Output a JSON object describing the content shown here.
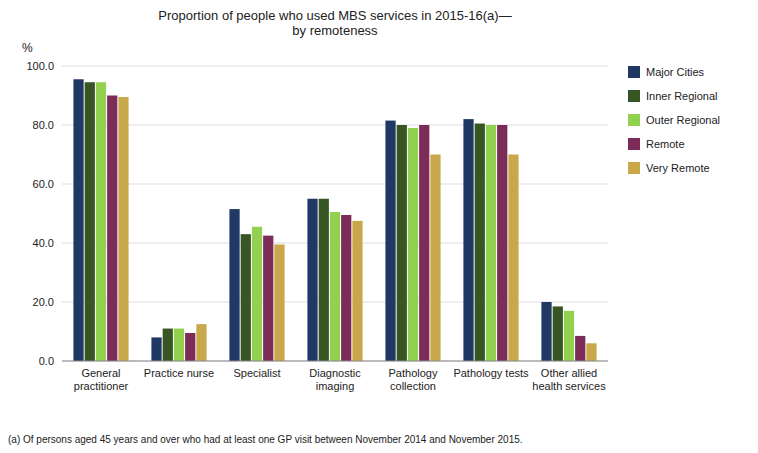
{
  "chart_data": {
    "type": "bar",
    "title": "Proportion of people who used MBS services in 2015-16(a)—\nby remoteness",
    "y_label": "%",
    "footnote": "(a) Of persons aged 45 years and over who had at least one GP visit between November 2014 and November 2015.",
    "categories": [
      "General\npractitioner",
      "Practice nurse",
      "Specialist",
      "Diagnostic\nimaging",
      "Pathology\ncollection",
      "Pathology tests",
      "Other allied\nhealth services"
    ],
    "series": [
      {
        "name": "Major Cities",
        "color": "#1F3864",
        "values": [
          95.5,
          8.0,
          51.5,
          55.0,
          81.5,
          82.0,
          20.0
        ]
      },
      {
        "name": "Inner Regional",
        "color": "#375623",
        "values": [
          94.5,
          11.0,
          43.0,
          55.0,
          80.0,
          80.5,
          18.5
        ]
      },
      {
        "name": "Outer Regional",
        "color": "#92D050",
        "values": [
          94.5,
          11.0,
          45.5,
          50.5,
          79.0,
          80.0,
          17.0
        ]
      },
      {
        "name": "Remote",
        "color": "#7B2C59",
        "values": [
          90.0,
          9.5,
          42.5,
          49.5,
          80.0,
          80.0,
          8.5
        ]
      },
      {
        "name": "Very Remote",
        "color": "#C9A84C",
        "values": [
          89.5,
          12.5,
          39.5,
          47.5,
          70.0,
          70.0,
          6.0
        ]
      }
    ],
    "ylim": [
      0,
      100
    ],
    "yticks": [
      {
        "value": 0,
        "label": "0.0"
      },
      {
        "value": 20,
        "label": "20.0"
      },
      {
        "value": 40,
        "label": "40.0"
      },
      {
        "value": 60,
        "label": "60.0"
      },
      {
        "value": 80,
        "label": "80.0"
      },
      {
        "value": 100,
        "label": "100.0"
      }
    ],
    "grid": true,
    "legend": "right"
  }
}
